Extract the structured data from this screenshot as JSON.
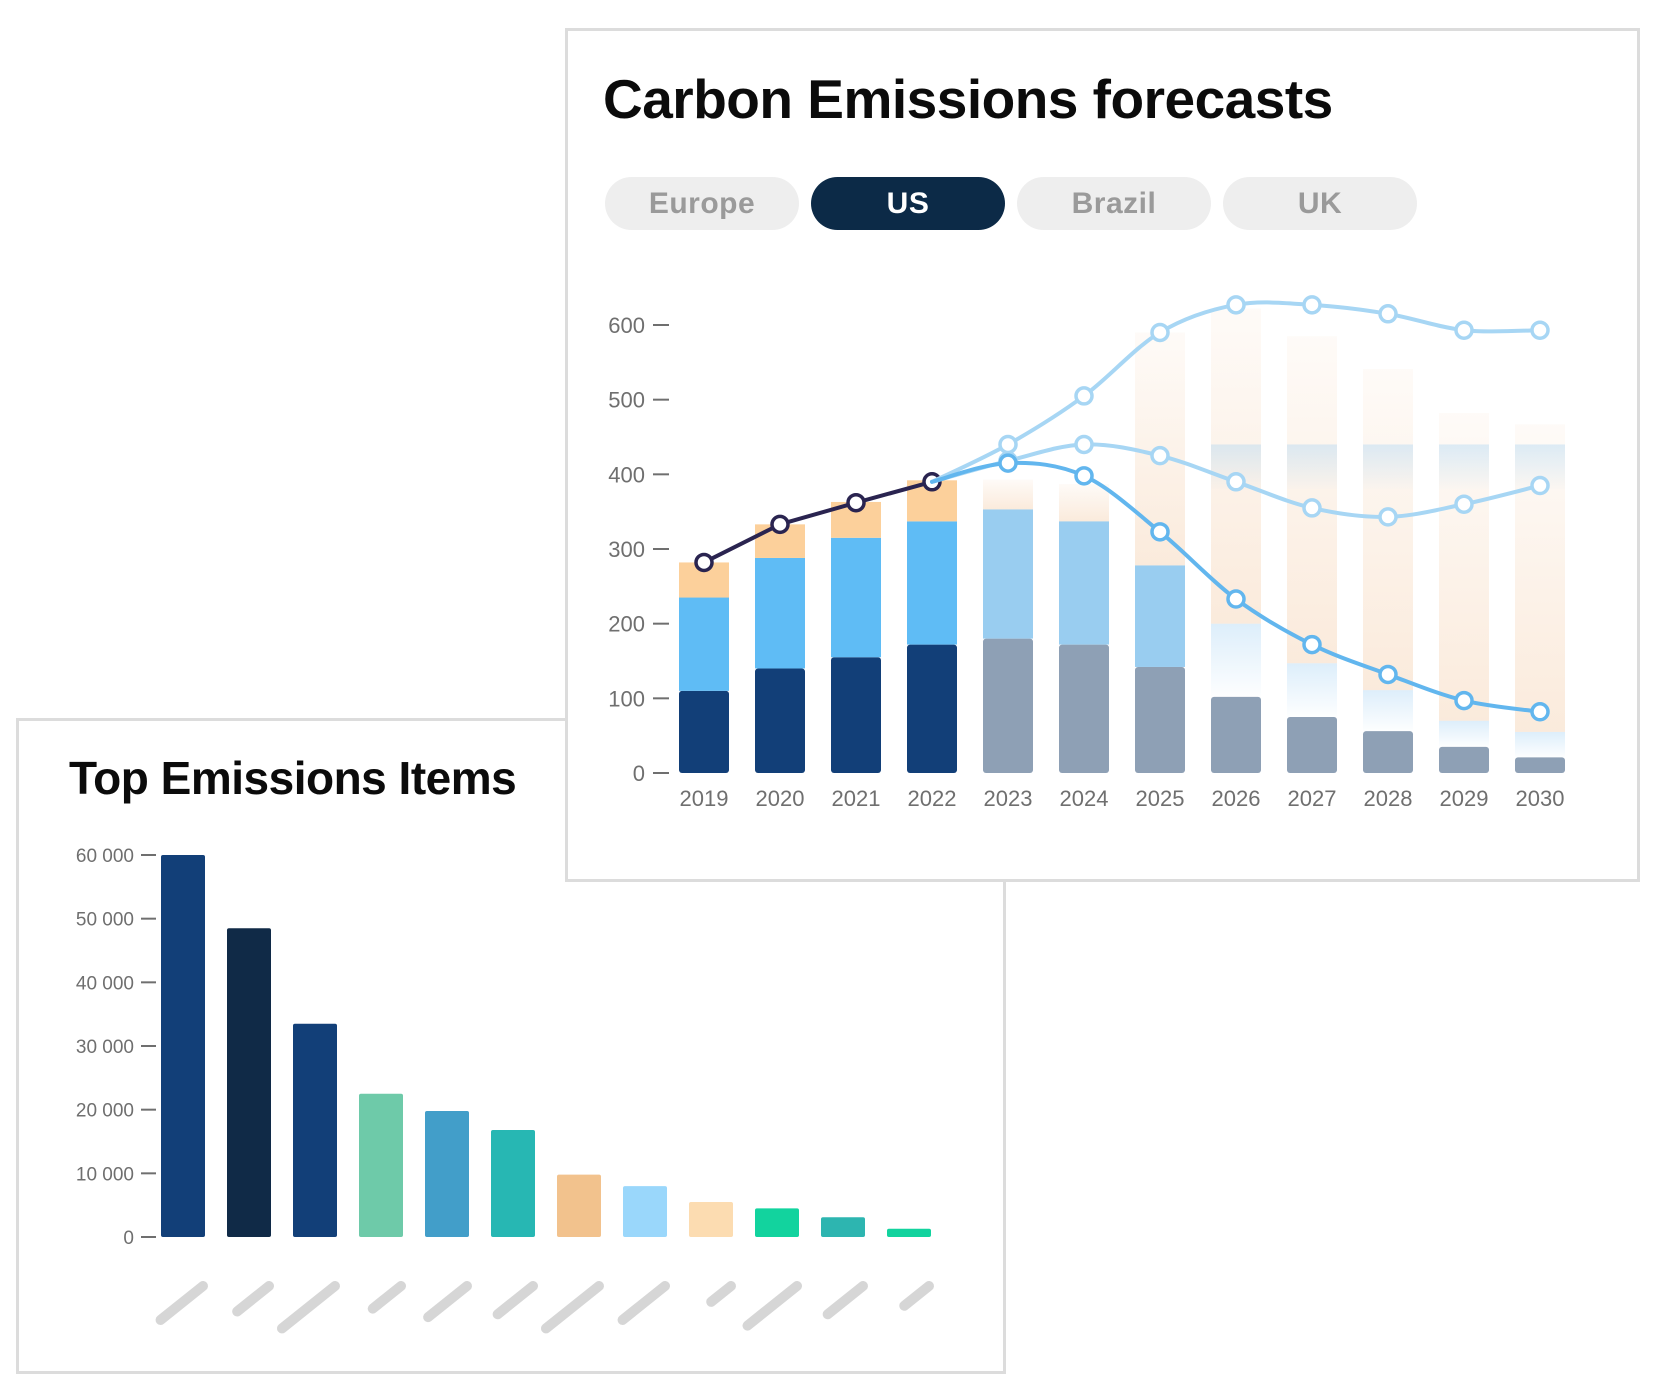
{
  "forecast": {
    "title": "Carbon Emissions forecasts",
    "tabs": [
      {
        "label": "Europe",
        "active": false
      },
      {
        "label": "US",
        "active": true
      },
      {
        "label": "Brazil",
        "active": false
      },
      {
        "label": "UK",
        "active": false
      }
    ]
  },
  "top_items": {
    "title": "Top Emissions Items"
  },
  "colors": {
    "navy": "#123f78",
    "light_blue": "#5fbcf5",
    "peach": "#fcd09b",
    "forecast_gray": "#8ea0b5",
    "forecast_blue": "#99cdf0",
    "history_line": "#2a2450",
    "forecast_line": "#62b6ee",
    "forecast_line_light": "#a7d6f4"
  },
  "chart_data": [
    {
      "type": "bar",
      "stacked": true,
      "title": "Carbon Emissions forecasts",
      "categories": [
        "2019",
        "2020",
        "2021",
        "2022",
        "2023",
        "2024",
        "2025",
        "2026",
        "2027",
        "2028",
        "2029",
        "2030"
      ],
      "ylim": [
        0,
        600
      ],
      "yticks": [
        0,
        100,
        200,
        300,
        400,
        500,
        600
      ],
      "grid": false,
      "series": [
        {
          "values": [
            110,
            140,
            155,
            172,
            180,
            172,
            142,
            102,
            75,
            56,
            35,
            21
          ]
        },
        {
          "values": [
            125,
            148,
            160,
            165,
            173,
            165,
            136,
            98,
            72,
            55,
            35,
            34
          ]
        },
        {
          "values": [
            47,
            45,
            48,
            55,
            40,
            50,
            312,
            422,
            438,
            430,
            412,
            412
          ]
        }
      ],
      "lines": [
        {
          "values": [
            282,
            333,
            362,
            390,
            null,
            null,
            null,
            null,
            null,
            null,
            null,
            null
          ]
        },
        {
          "values": [
            null,
            null,
            null,
            390,
            440,
            505,
            590,
            627,
            627,
            615,
            593,
            593
          ]
        },
        {
          "values": [
            null,
            null,
            null,
            390,
            418,
            440,
            425,
            390,
            355,
            343,
            360,
            385
          ]
        },
        {
          "values": [
            null,
            null,
            null,
            390,
            415,
            398,
            323,
            233,
            172,
            132,
            97,
            82
          ]
        }
      ]
    },
    {
      "type": "bar",
      "title": "Top Emissions Items",
      "yticks": [
        0,
        10000,
        20000,
        30000,
        40000,
        50000,
        60000
      ],
      "ytick_labels": [
        "0",
        "10 000",
        "20 000",
        "30 000",
        "40 000",
        "50 000",
        "60 000"
      ],
      "ylim": [
        0,
        60000
      ],
      "categories": [
        "",
        "",
        "",
        "",
        "",
        "",
        "",
        "",
        "",
        "",
        "",
        ""
      ],
      "values": [
        60000,
        48500,
        33500,
        22500,
        19800,
        16800,
        9800,
        8000,
        5500,
        4500,
        3100,
        1300
      ],
      "colors": [
        "#123f78",
        "#102a47",
        "#123f78",
        "#6ecaa9",
        "#429ec9",
        "#27b7b3",
        "#f2c28d",
        "#9ad7fb",
        "#fcdcb1",
        "#12d39e",
        "#2db5b0",
        "#12d39e"
      ]
    }
  ]
}
